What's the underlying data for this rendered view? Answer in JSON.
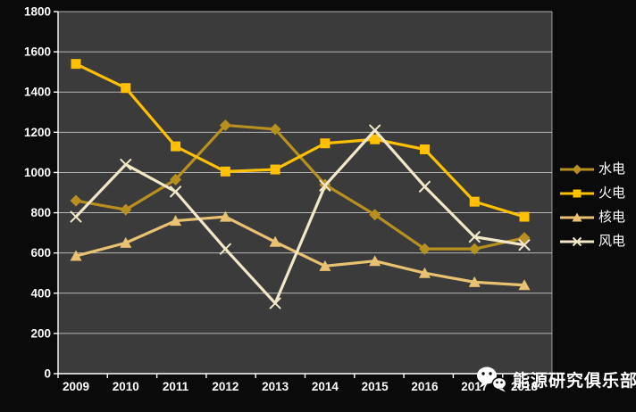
{
  "colors": {
    "background": "#0a0a0a",
    "plot_background": "#3B3B3B",
    "gridline": "#CDCDCD",
    "axis_line": "#FFFFFF",
    "label_text": "#FFFFFF"
  },
  "chart_data": {
    "type": "line",
    "title": "",
    "categories": [
      "2009",
      "2010",
      "2011",
      "2012",
      "2013",
      "2014",
      "2015",
      "2016",
      "2017",
      "2018"
    ],
    "series": [
      {
        "id": "hydro",
        "name": "水电",
        "marker": "diamond",
        "color": "#B8901F",
        "values": [
          860,
          815,
          965,
          1235,
          1215,
          940,
          790,
          620,
          620,
          675
        ]
      },
      {
        "id": "thermal",
        "name": "火电",
        "marker": "square",
        "color": "#FFC000",
        "values": [
          1540,
          1420,
          1130,
          1005,
          1015,
          1145,
          1165,
          1115,
          855,
          780
        ]
      },
      {
        "id": "nuclear",
        "name": "核电",
        "marker": "triangle",
        "color": "#E8C272",
        "values": [
          585,
          650,
          760,
          780,
          655,
          535,
          560,
          500,
          455,
          440
        ]
      },
      {
        "id": "wind",
        "name": "风电",
        "marker": "x",
        "color": "#F3E7CB",
        "values": [
          780,
          1040,
          905,
          620,
          350,
          935,
          1210,
          930,
          680,
          640
        ]
      }
    ],
    "ylim": [
      0,
      1800
    ],
    "ytick_step": 200,
    "y_tick_labels": [
      "0",
      "200",
      "400",
      "600",
      "800",
      "1000",
      "1200",
      "1400",
      "1600",
      "1800"
    ],
    "grid": true,
    "legend_position": "right"
  },
  "watermark": {
    "icon": "wechat-icon",
    "label": "能源研究俱乐部"
  }
}
